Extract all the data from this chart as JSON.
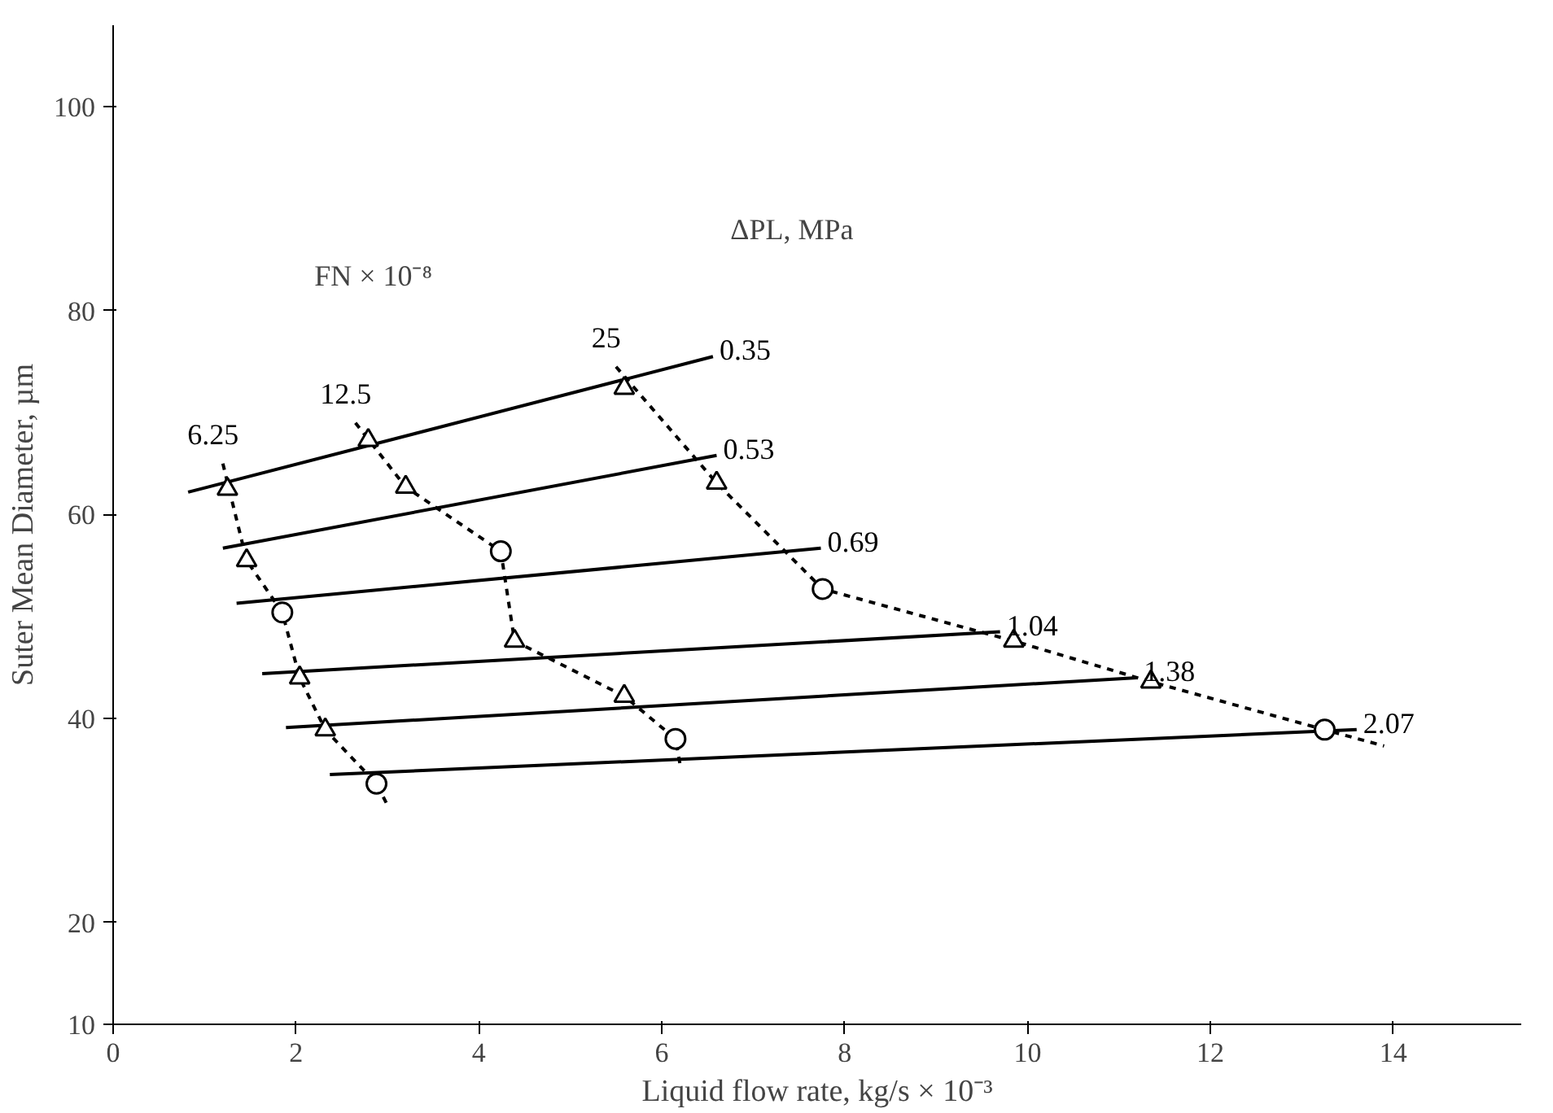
{
  "chart_data": {
    "type": "line",
    "xlabel": "Liquid flow rate, kg/s × 10⁻³",
    "ylabel": "Suter Mean Diameter, µm",
    "xlim": [
      0,
      15.4
    ],
    "ylim": [
      10,
      108
    ],
    "xticks": [
      0,
      2,
      4,
      6,
      8,
      10,
      12,
      14
    ],
    "yticks": [
      10,
      20,
      40,
      60,
      80,
      100
    ],
    "annotations": [
      "FN × 10⁻⁸",
      "ΔPL, MPa"
    ],
    "series": [
      {
        "name": "0.35",
        "color": "#000000",
        "line_style": "solid",
        "x": [
          0.82,
          6.56
        ],
        "values": [
          62.2,
          75.5
        ]
      },
      {
        "name": "0.53",
        "color": "#000000",
        "line_style": "solid",
        "x": [
          1.2,
          6.6
        ],
        "values": [
          56.7,
          65.8
        ]
      },
      {
        "name": "0.69",
        "color": "#000000",
        "line_style": "solid",
        "x": [
          1.35,
          7.74
        ],
        "values": [
          51.3,
          56.7
        ]
      },
      {
        "name": "1.04",
        "color": "#000000",
        "line_style": "solid",
        "x": [
          1.63,
          9.7
        ],
        "values": [
          44.4,
          48.5
        ]
      },
      {
        "name": "1.38",
        "color": "#000000",
        "line_style": "solid",
        "x": [
          1.89,
          11.2
        ],
        "values": [
          39.1,
          44.0
        ]
      },
      {
        "name": "2.07",
        "color": "#000000",
        "line_style": "solid",
        "x": [
          2.37,
          13.6
        ],
        "values": [
          34.5,
          38.9
        ]
      },
      {
        "name": "6.25",
        "color": "#000000",
        "line_style": "dashed",
        "x": [
          1.2,
          1.46,
          1.85,
          2.04,
          2.32,
          2.88,
          3.0
        ],
        "values": [
          65,
          55.5,
          50.4,
          44,
          38.9,
          33.6,
          31.5
        ]
      },
      {
        "name": "12.5",
        "color": "#000000",
        "line_style": "dashed",
        "x": [
          2.65,
          3.2,
          4.24,
          4.39,
          5.59,
          6.15,
          6.2
        ],
        "values": [
          69,
          62.7,
          56.4,
          47.6,
          42.2,
          38,
          35.5
        ]
      },
      {
        "name": "25",
        "color": "#000000",
        "line_style": "dashed",
        "x": [
          5.5,
          6.6,
          7.76,
          9.85,
          11.35,
          13.25,
          13.9
        ],
        "values": [
          74.5,
          63.1,
          52.7,
          47.6,
          43.6,
          38.9,
          37.3
        ]
      },
      {
        "type": "scatter",
        "marker": "triangle",
        "color": "#000000",
        "x": [
          1.25,
          2.79,
          5.59
        ],
        "values": [
          62.5,
          67.3,
          72.4
        ]
      },
      {
        "type": "scatter",
        "marker": "triangle",
        "color": "#000000",
        "x": [
          1.46,
          3.2,
          6.6
        ],
        "values": [
          55.5,
          62.7,
          63.1
        ]
      },
      {
        "type": "scatter",
        "marker": "circle",
        "color": "#000000",
        "x": [
          1.85,
          4.24,
          7.76
        ],
        "values": [
          50.4,
          56.4,
          52.7
        ]
      },
      {
        "type": "scatter",
        "marker": "triangle",
        "color": "#000000",
        "x": [
          2.04,
          4.39,
          9.85
        ],
        "values": [
          44,
          47.6,
          47.6
        ]
      },
      {
        "type": "scatter",
        "marker": "triangle",
        "color": "#000000",
        "x": [
          2.32,
          5.59,
          11.35
        ],
        "values": [
          38.9,
          42.2,
          43.6
        ]
      },
      {
        "type": "scatter",
        "marker": "circle",
        "color": "#000000",
        "x": [
          2.88,
          6.15,
          13.25
        ],
        "values": [
          33.6,
          38,
          38.9
        ]
      }
    ]
  }
}
